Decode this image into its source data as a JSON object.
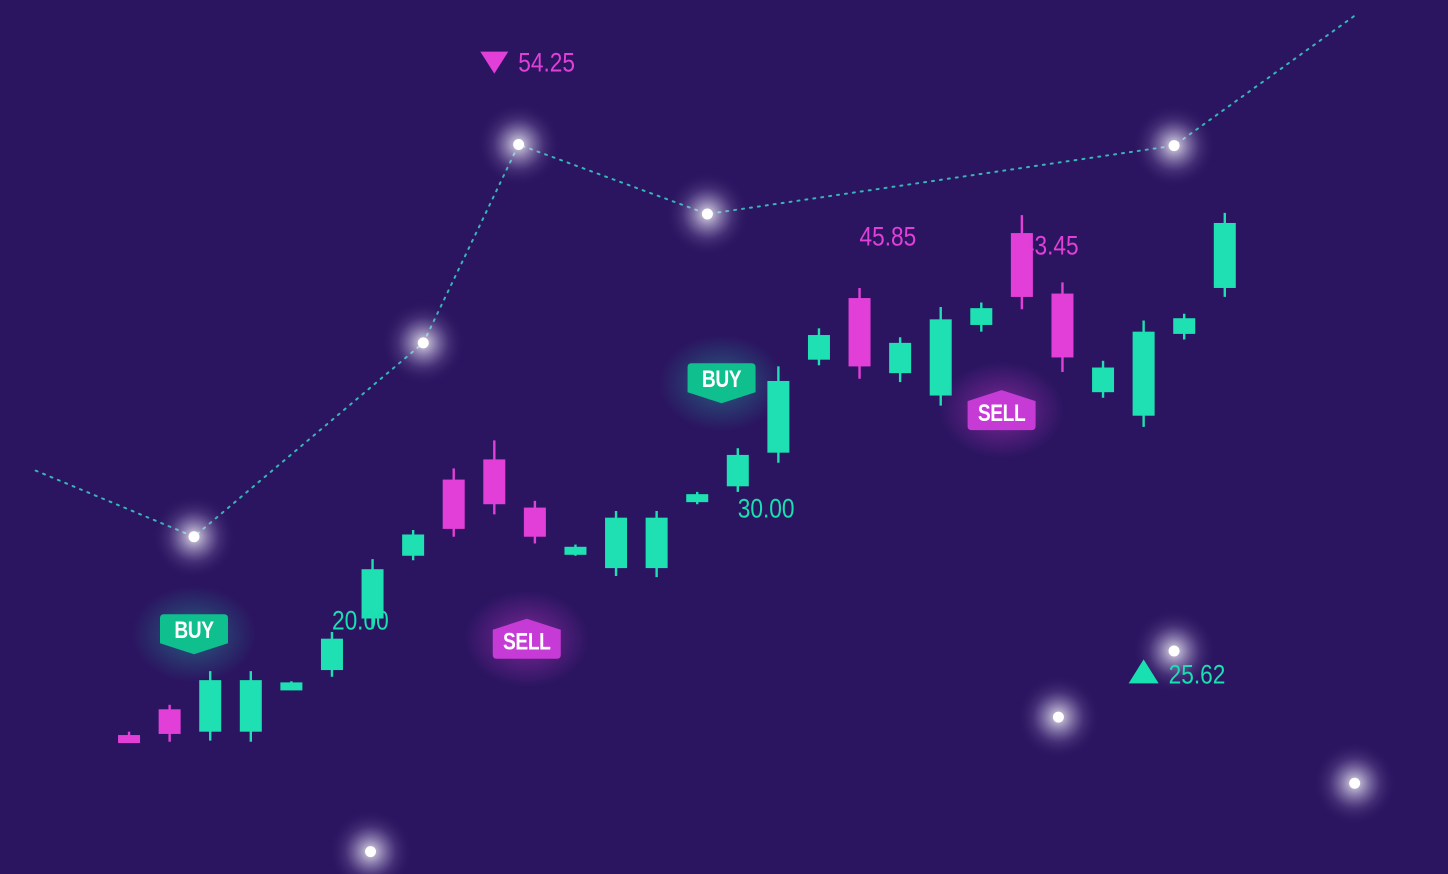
{
  "chart_data": {
    "type": "candlestick",
    "candles": [
      {
        "open": 24.2,
        "close": 24.0,
        "high": 24.35,
        "low": 23.85
      },
      {
        "open": 25.35,
        "close": 24.25,
        "high": 25.55,
        "low": 23.9
      },
      {
        "open": 24.35,
        "close": 26.65,
        "high": 27.05,
        "low": 23.95
      },
      {
        "open": 24.35,
        "close": 26.65,
        "high": 27.05,
        "low": 23.9
      },
      {
        "open": 26.3,
        "close": 26.55,
        "high": 26.6,
        "low": 26.2
      },
      {
        "open": 27.1,
        "close": 28.5,
        "high": 28.8,
        "low": 26.8
      },
      {
        "open": 29.4,
        "close": 31.6,
        "high": 32.05,
        "low": 28.95
      },
      {
        "open": 32.2,
        "close": 33.15,
        "high": 33.35,
        "low": 32.0
      },
      {
        "open": 35.6,
        "close": 33.4,
        "high": 36.1,
        "low": 33.05
      },
      {
        "open": 36.5,
        "close": 34.5,
        "high": 37.35,
        "low": 34.05
      },
      {
        "open": 34.35,
        "close": 33.05,
        "high": 34.65,
        "low": 32.75
      },
      {
        "open": 32.3,
        "close": 32.6,
        "high": 32.7,
        "low": 32.2
      },
      {
        "open": 31.65,
        "close": 33.9,
        "high": 34.2,
        "low": 31.3
      },
      {
        "open": 31.65,
        "close": 33.9,
        "high": 34.2,
        "low": 31.25
      },
      {
        "open": 34.6,
        "close": 34.95,
        "high": 35.05,
        "low": 34.5
      },
      {
        "open": 35.3,
        "close": 36.7,
        "high": 37.0,
        "low": 35.05
      },
      {
        "open": 36.8,
        "close": 40.0,
        "high": 40.65,
        "low": 36.35
      },
      {
        "open": 40.95,
        "close": 42.05,
        "high": 42.35,
        "low": 40.7
      },
      {
        "open": 43.7,
        "close": 40.65,
        "high": 44.15,
        "low": 40.1
      },
      {
        "open": 40.35,
        "close": 41.7,
        "high": 41.95,
        "low": 39.95
      },
      {
        "open": 39.35,
        "close": 42.75,
        "high": 43.3,
        "low": 38.9
      },
      {
        "open": 42.5,
        "close": 43.25,
        "high": 43.5,
        "low": 42.2
      },
      {
        "open": 46.6,
        "close": 43.75,
        "high": 47.4,
        "low": 43.2
      },
      {
        "open": 43.9,
        "close": 41.05,
        "high": 44.4,
        "low": 40.4
      },
      {
        "open": 39.5,
        "close": 40.6,
        "high": 40.9,
        "low": 39.25
      },
      {
        "open": 38.45,
        "close": 42.2,
        "high": 42.7,
        "low": 37.95
      },
      {
        "open": 42.1,
        "close": 42.8,
        "high": 43.0,
        "low": 41.85
      },
      {
        "open": 44.15,
        "close": 47.05,
        "high": 47.5,
        "low": 43.75
      }
    ],
    "price_labels": [
      {
        "text": "54.25",
        "candle": 9,
        "price": 54.25,
        "marker": "down",
        "color": "#e13fd8",
        "offset": "above"
      },
      {
        "text": "20.00",
        "candle": 5,
        "price": 29.35,
        "marker": "",
        "color": "#18e0b0",
        "offset": "left"
      },
      {
        "text": "30.00",
        "candle": 15,
        "price": 34.35,
        "marker": "",
        "color": "#18e0b0",
        "offset": "right"
      },
      {
        "text": "45.85",
        "candle": 18,
        "price": 46.5,
        "marker": "",
        "color": "#e13fd8",
        "offset": "above"
      },
      {
        "text": "43.45",
        "candle": 22,
        "price": 46.1,
        "marker": "",
        "color": "#e13fd8",
        "offset": "right"
      },
      {
        "text": "25.62",
        "candle": 25,
        "price": 26.95,
        "marker": "up",
        "color": "#18e0b0",
        "offset": "below"
      }
    ],
    "signals": [
      {
        "text": "BUY",
        "type": "buy",
        "candle": 1.6,
        "price": 28.7
      },
      {
        "text": "SELL",
        "type": "sell",
        "candle": 9.8,
        "price": 28.5
      },
      {
        "text": "BUY",
        "type": "buy",
        "candle": 14.6,
        "price": 39.9
      },
      {
        "text": "SELL",
        "type": "sell",
        "candle": 21.5,
        "price": 38.7
      }
    ],
    "trend_points": [
      {
        "candle": -2.3,
        "price": 36.0
      },
      {
        "candle": 1.6,
        "price": 33.05
      },
      {
        "candle": 7.25,
        "price": 41.7
      },
      {
        "candle": 9.6,
        "price": 50.55
      },
      {
        "candle": 14.25,
        "price": 47.45
      },
      {
        "candle": 25.75,
        "price": 50.5
      },
      {
        "candle": 30.2,
        "price": 56.3
      }
    ],
    "stars": [
      {
        "candle": 5.95,
        "price": 19.0
      },
      {
        "candle": 22.9,
        "price": 25.0
      },
      {
        "candle": 25.75,
        "price": 27.95
      },
      {
        "candle": 30.2,
        "price": 22.05
      }
    ],
    "ylim": [
      18,
      57
    ],
    "xlim": [
      -3.18,
      32.5
    ],
    "grid": false,
    "colors": {
      "up": "#1ee0b2",
      "down": "#e13fd8",
      "background": "#2b1561"
    }
  }
}
